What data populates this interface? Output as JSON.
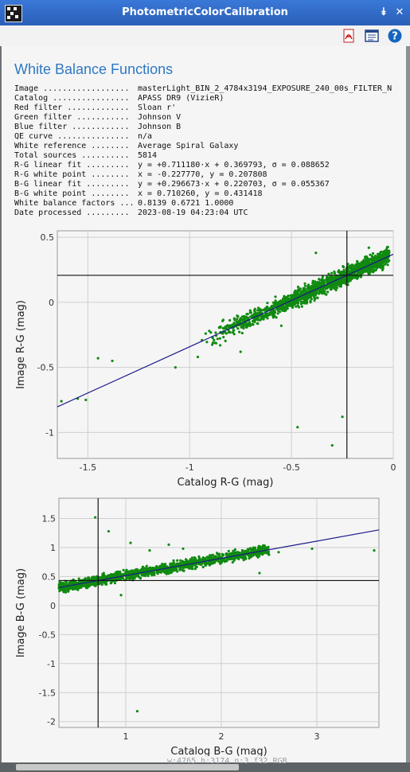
{
  "window": {
    "title": "PhotometricColorCalibration"
  },
  "toolbar": {
    "icons": [
      "pdf-icon",
      "browser-doc-icon",
      "help-icon"
    ],
    "help_glyph": "?"
  },
  "report": {
    "heading": "White Balance Functions",
    "rows": [
      {
        "key": "Image ..................",
        "value": "masterLight_BIN_2_4784x3194_EXPOSURE_240_00s_FILTER_N"
      },
      {
        "key": "Catalog ................",
        "value": "APASS DR9 (VizieR)"
      },
      {
        "key": "Red filter .............",
        "value": "Sloan r'"
      },
      {
        "key": "Green filter ...........",
        "value": "Johnson V"
      },
      {
        "key": "Blue filter ............",
        "value": "Johnson B"
      },
      {
        "key": "QE curve ...............",
        "value": "n/a"
      },
      {
        "key": "White reference ........",
        "value": "Average Spiral Galaxy"
      },
      {
        "key": "Total sources ..........",
        "value": "5814"
      },
      {
        "key": "R-G linear fit .........",
        "value": "y = +0.711180·x + 0.369793, σ = 0.088652"
      },
      {
        "key": "R-G white point ........",
        "value": "x = -0.227770, y = 0.207808"
      },
      {
        "key": "B-G linear fit .........",
        "value": "y = +0.296673·x + 0.220703, σ = 0.055367"
      },
      {
        "key": "B-G white point ........",
        "value": "x = 0.710260, y = 0.431418"
      },
      {
        "key": "White balance factors ...",
        "value": "0.8139 0.6721 1.0000"
      },
      {
        "key": "Date processed .........",
        "value": "2023-08-19 04:23:04 UTC"
      }
    ]
  },
  "status_text": "w:4765 h:3174 n:3 f32 RGB",
  "colors": {
    "title_bar": "#2a5fb8",
    "heading": "#2f78c4",
    "points": "#108a10",
    "fit_line": "#1a1a8a"
  },
  "chart_data": [
    {
      "type": "scatter",
      "title": "",
      "xlabel": "Catalog R-G (mag)",
      "ylabel": "Image R-G (mag)",
      "xlim": [
        -1.65,
        0.0
      ],
      "ylim": [
        -1.2,
        0.55
      ],
      "xticks": [
        -1.5,
        -1,
        -0.5,
        0
      ],
      "xtick_labels": [
        "-1.5",
        "-1",
        "-0.5",
        "0"
      ],
      "yticks": [
        -1,
        -0.5,
        0,
        0.5
      ],
      "ytick_labels": [
        "-1",
        "-0.5",
        "0",
        "0.5"
      ],
      "grid": true,
      "fit": {
        "slope": 0.71118,
        "intercept": 0.369793
      },
      "white_point": {
        "x": -0.22777,
        "y": 0.207808
      },
      "main_cluster": {
        "x_range": [
          -0.95,
          -0.02
        ],
        "spread": 0.04
      },
      "outliers": [
        {
          "x": -1.63,
          "y": -0.76
        },
        {
          "x": -1.55,
          "y": -0.74
        },
        {
          "x": -1.51,
          "y": -0.75
        },
        {
          "x": -1.45,
          "y": -0.43
        },
        {
          "x": -1.38,
          "y": -0.45
        },
        {
          "x": -1.07,
          "y": -0.5
        },
        {
          "x": -0.96,
          "y": -0.42
        },
        {
          "x": -0.85,
          "y": -0.33
        },
        {
          "x": -0.75,
          "y": -0.38
        },
        {
          "x": -0.55,
          "y": -0.18
        },
        {
          "x": -0.47,
          "y": -0.96
        },
        {
          "x": -0.25,
          "y": -0.88
        },
        {
          "x": -0.3,
          "y": -1.1
        },
        {
          "x": -0.38,
          "y": 0.38
        },
        {
          "x": -0.12,
          "y": 0.42
        }
      ]
    },
    {
      "type": "scatter",
      "title": "",
      "xlabel": "Catalog B-G (mag)",
      "ylabel": "Image B-G (mag)",
      "xlim": [
        0.3,
        3.65
      ],
      "ylim": [
        -2.1,
        1.85
      ],
      "xticks": [
        1,
        2,
        3
      ],
      "xtick_labels": [
        "1",
        "2",
        "3"
      ],
      "yticks": [
        -2,
        -1.5,
        -1,
        -0.5,
        0,
        0.5,
        1,
        1.5
      ],
      "ytick_labels": [
        "-2",
        "-1.5",
        "-1",
        "-0.5",
        "0",
        "0.5",
        "1",
        "1.5"
      ],
      "grid": true,
      "fit": {
        "slope": 0.296673,
        "intercept": 0.220703
      },
      "white_point": {
        "x": 0.71026,
        "y": 0.431418
      },
      "main_cluster": {
        "x_range": [
          0.3,
          2.5
        ],
        "spread": 0.05
      },
      "outliers": [
        {
          "x": 0.68,
          "y": 1.52
        },
        {
          "x": 0.82,
          "y": 1.28
        },
        {
          "x": 1.05,
          "y": 1.08
        },
        {
          "x": 1.25,
          "y": 0.95
        },
        {
          "x": 1.45,
          "y": 1.05
        },
        {
          "x": 1.6,
          "y": 0.98
        },
        {
          "x": 1.12,
          "y": -1.82
        },
        {
          "x": 2.95,
          "y": 0.98
        },
        {
          "x": 3.6,
          "y": 0.95
        },
        {
          "x": 2.6,
          "y": 0.92
        },
        {
          "x": 2.4,
          "y": 0.56
        },
        {
          "x": 0.95,
          "y": 0.18
        }
      ]
    }
  ]
}
